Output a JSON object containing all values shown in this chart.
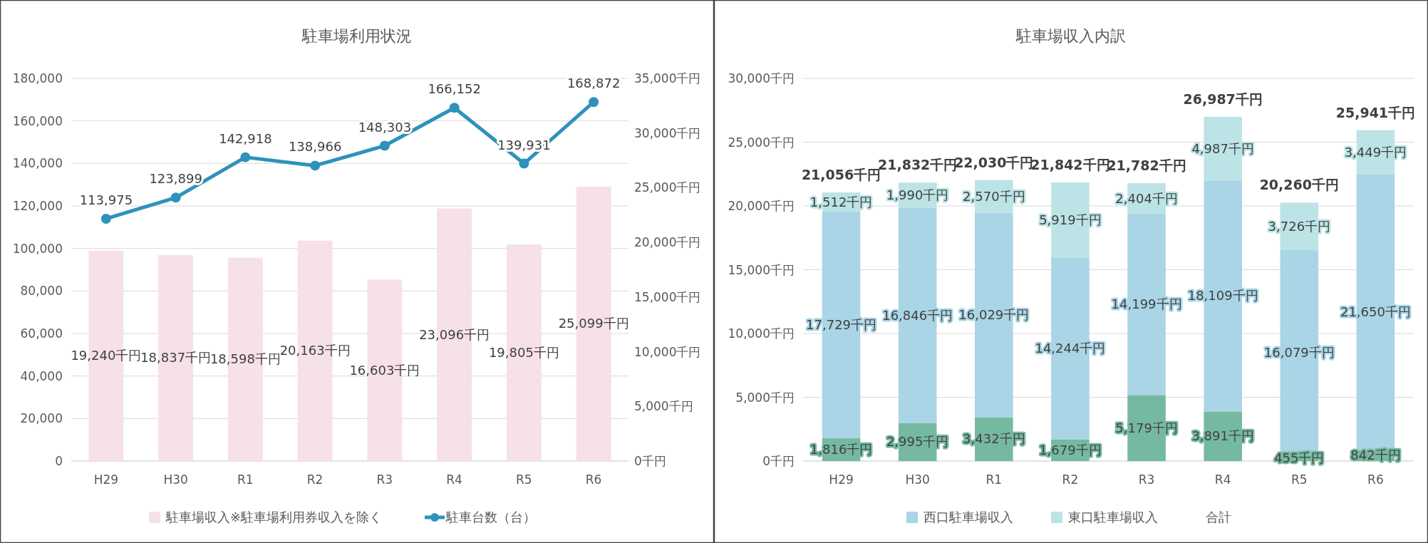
{
  "chart_data": [
    {
      "type": "bar",
      "title": "駐車場利用状況",
      "categories": [
        "H29",
        "H30",
        "R1",
        "R2",
        "R3",
        "R4",
        "R5",
        "R6"
      ],
      "series": [
        {
          "type": "bar",
          "axis": "y2",
          "name": "駐車場収入※駐車場利用券収入を除く",
          "color": "#f6e1e7",
          "values": [
            19240,
            18837,
            18598,
            20163,
            16603,
            23096,
            19805,
            25099
          ],
          "value_labels": [
            "19,240千円",
            "18,837千円",
            "18,598千円",
            "20,163千円",
            "16,603千円",
            "23,096千円",
            "19,805千円",
            "25,099千円"
          ]
        },
        {
          "type": "line",
          "axis": "y",
          "name": "駐車台数（台）",
          "color": "#2e92bb",
          "marker": "circle",
          "values": [
            113975,
            123899,
            142918,
            138966,
            148303,
            166152,
            139931,
            168872
          ],
          "value_labels": [
            "113,975",
            "123,899",
            "142,918",
            "138,966",
            "148,303",
            "166,152",
            "139,931",
            "168,872"
          ]
        }
      ],
      "ylim": [
        0,
        180000
      ],
      "yticks": [
        {
          "value": 0,
          "label": "0"
        },
        {
          "value": 20000,
          "label": "20,000"
        },
        {
          "value": 40000,
          "label": "40,000"
        },
        {
          "value": 60000,
          "label": "60,000"
        },
        {
          "value": 80000,
          "label": "80,000"
        },
        {
          "value": 100000,
          "label": "100,000"
        },
        {
          "value": 120000,
          "label": "120,000"
        },
        {
          "value": 140000,
          "label": "140,000"
        },
        {
          "value": 160000,
          "label": "160,000"
        },
        {
          "value": 180000,
          "label": "180,000"
        }
      ],
      "y2lim": [
        0,
        35000
      ],
      "y2ticks": [
        {
          "value": 0,
          "label": "0千円"
        },
        {
          "value": 5000,
          "label": "5,000千円"
        },
        {
          "value": 10000,
          "label": "10,000千円"
        },
        {
          "value": 15000,
          "label": "15,000千円"
        },
        {
          "value": 20000,
          "label": "20,000千円"
        },
        {
          "value": 25000,
          "label": "25,000千円"
        },
        {
          "value": 30000,
          "label": "30,000千円"
        },
        {
          "value": 35000,
          "label": "35,000千円"
        }
      ],
      "grid": "y",
      "legend": "bottom"
    },
    {
      "type": "bar",
      "title": "駐車場収入内訳",
      "categories": [
        "H29",
        "H30",
        "R1",
        "R2",
        "R3",
        "R4",
        "R5",
        "R6"
      ],
      "stacked": true,
      "series": [
        {
          "color": "#76b9a1",
          "values": [
            1816,
            2995,
            3432,
            1679,
            5179,
            3891,
            455,
            842
          ],
          "value_labels": [
            "1,816千円",
            "2,995千円",
            "3,432千円",
            "1,679千円",
            "5,179千円",
            "3,891千円",
            "455千円",
            "842千円"
          ]
        },
        {
          "name": "西口駐車場収入",
          "color": "#a9d5e6",
          "values": [
            17729,
            16846,
            16029,
            14244,
            14199,
            18109,
            16079,
            21650
          ],
          "value_labels": [
            "17,729千円",
            "16,846千円",
            "16,029千円",
            "14,244千円",
            "14,199千円",
            "18,109千円",
            "16,079千円",
            "21,650千円"
          ]
        },
        {
          "name": "東口駐車場収入",
          "color": "#bce3e6",
          "values": [
            1512,
            1990,
            2570,
            5919,
            2404,
            4987,
            3726,
            3449
          ],
          "value_labels": [
            "1,512千円",
            "1,990千円",
            "2,570千円",
            "5,919千円",
            "2,404千円",
            "4,987千円",
            "3,726千円",
            "3,449千円"
          ]
        }
      ],
      "totals": [
        "21,056千円",
        "21,832千円",
        "22,030千円",
        "21,842千円",
        "21,782千円",
        "26,987千円",
        "20,260千円",
        "25,941千円"
      ],
      "annotations": [
        "合計"
      ],
      "ylim": [
        0,
        30000
      ],
      "yticks": [
        {
          "value": 0,
          "label": "0千円"
        },
        {
          "value": 5000,
          "label": "5,000千円"
        },
        {
          "value": 10000,
          "label": "10,000千円"
        },
        {
          "value": 15000,
          "label": "15,000千円"
        },
        {
          "value": 20000,
          "label": "20,000千円"
        },
        {
          "value": 25000,
          "label": "25,000千円"
        },
        {
          "value": 30000,
          "label": "30,000千円"
        }
      ],
      "grid": "y",
      "legend": "bottom"
    }
  ]
}
